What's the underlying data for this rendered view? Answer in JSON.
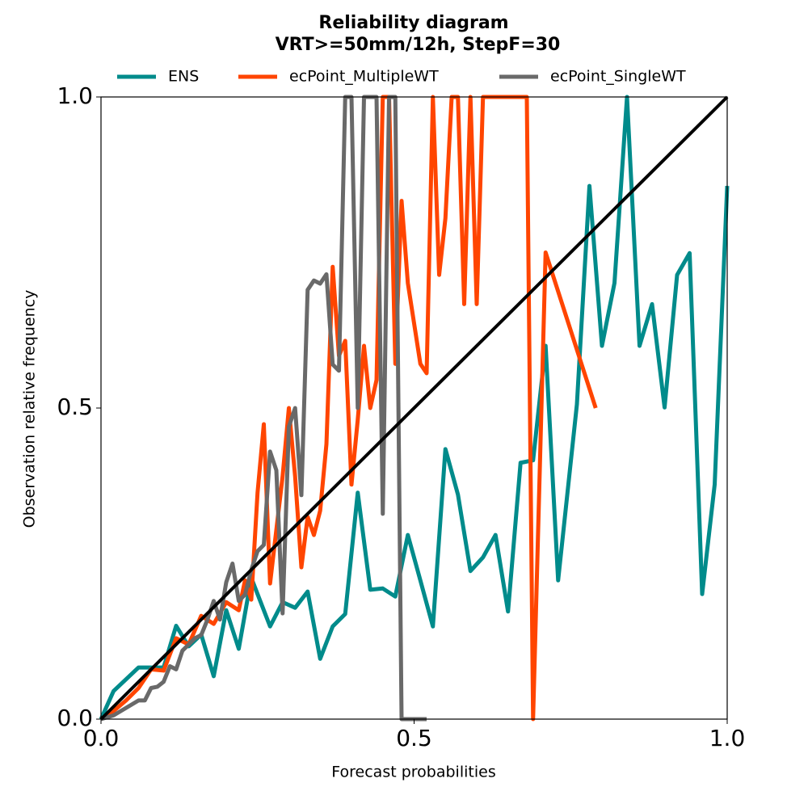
{
  "chart_data": {
    "type": "line",
    "title": "Reliability diagram",
    "subtitle": "VRT>=50mm/12h, StepF=30",
    "x_label": "Forecast probabilities",
    "y_label": "Observation relative frequency",
    "xlim": [
      0,
      1
    ],
    "ylim": [
      0,
      1
    ],
    "xticks": [
      {
        "value": 0,
        "label": "0.0"
      },
      0.5,
      {
        "value": 1,
        "label": "1.0"
      }
    ],
    "yticks": [
      {
        "value": 0,
        "label": "0.0"
      },
      0.5,
      {
        "value": 1,
        "label": "1.0"
      }
    ],
    "diagonal": true,
    "diagonal_color": "#000000",
    "legend": "top",
    "series": [
      {
        "name": "ENS",
        "color": "#008b8b",
        "x": [
          0,
          0.02,
          0.06,
          0.08,
          0.1,
          0.12,
          0.14,
          0.16,
          0.18,
          0.2,
          0.22,
          0.24,
          0.27,
          0.29,
          0.31,
          0.33,
          0.35,
          0.37,
          0.39,
          0.41,
          0.43,
          0.45,
          0.47,
          0.49,
          0.51,
          0.53,
          0.55,
          0.57,
          0.59,
          0.61,
          0.63,
          0.65,
          0.67,
          0.69,
          0.71,
          0.73,
          0.76,
          0.78,
          0.8,
          0.82,
          0.84,
          0.86,
          0.88,
          0.9,
          0.92,
          0.94,
          0.96,
          0.98,
          1.0
        ],
        "values": [
          0,
          0.045,
          0.083,
          0.083,
          0.083,
          0.15,
          0.117,
          0.136,
          0.069,
          0.175,
          0.113,
          0.227,
          0.149,
          0.188,
          0.179,
          0.205,
          0.097,
          0.149,
          0.169,
          0.364,
          0.208,
          0.21,
          0.197,
          0.296,
          0.223,
          0.149,
          0.434,
          0.361,
          0.238,
          0.26,
          0.296,
          0.173,
          0.412,
          0.416,
          0.6,
          0.223,
          0.506,
          0.857,
          0.6,
          0.701,
          1.0,
          0.6,
          0.667,
          0.501,
          0.714,
          0.749,
          0.201,
          0.377,
          0.857
        ]
      },
      {
        "name": "ecPoint_MultipleWT",
        "color": "#ff4500",
        "x": [
          0,
          0.02,
          0.04,
          0.06,
          0.08,
          0.1,
          0.12,
          0.14,
          0.16,
          0.18,
          0.2,
          0.22,
          0.23,
          0.24,
          0.25,
          0.26,
          0.27,
          0.29,
          0.3,
          0.31,
          0.32,
          0.33,
          0.34,
          0.35,
          0.36,
          0.37,
          0.38,
          0.39,
          0.4,
          0.41,
          0.42,
          0.43,
          0.44,
          0.45,
          0.46,
          0.47,
          0.48,
          0.49,
          0.51,
          0.52,
          0.53,
          0.54,
          0.55,
          0.56,
          0.57,
          0.58,
          0.59,
          0.6,
          0.61,
          0.68,
          0.69,
          0.71,
          0.79
        ],
        "values": [
          0,
          0.013,
          0.03,
          0.05,
          0.08,
          0.078,
          0.13,
          0.12,
          0.166,
          0.153,
          0.188,
          0.175,
          0.223,
          0.192,
          0.364,
          0.474,
          0.218,
          0.39,
          0.5,
          0.39,
          0.244,
          0.325,
          0.296,
          0.335,
          0.442,
          0.727,
          0.584,
          0.608,
          0.377,
          0.481,
          0.6,
          0.5,
          0.545,
          1.0,
          1.0,
          0.571,
          0.833,
          0.701,
          0.571,
          0.556,
          1.0,
          0.714,
          0.805,
          1.0,
          1.0,
          0.667,
          1.0,
          0.667,
          1.0,
          1.0,
          0,
          0.75,
          0.5
        ]
      },
      {
        "name": "ecPoint_SingleWT",
        "color": "#696969",
        "x": [
          0,
          0.02,
          0.04,
          0.06,
          0.07,
          0.08,
          0.09,
          0.1,
          0.11,
          0.12,
          0.13,
          0.14,
          0.15,
          0.16,
          0.17,
          0.18,
          0.19,
          0.2,
          0.21,
          0.22,
          0.23,
          0.24,
          0.25,
          0.26,
          0.27,
          0.28,
          0.29,
          0.3,
          0.31,
          0.32,
          0.33,
          0.34,
          0.35,
          0.36,
          0.37,
          0.38,
          0.39,
          0.4,
          0.41,
          0.42,
          0.43,
          0.44,
          0.45,
          0.46,
          0.47,
          0.48,
          0.49,
          0.5,
          0.52
        ],
        "values": [
          0,
          0.006,
          0.018,
          0.03,
          0.03,
          0.05,
          0.052,
          0.06,
          0.085,
          0.08,
          0.11,
          0.12,
          0.13,
          0.135,
          0.16,
          0.19,
          0.16,
          0.22,
          0.25,
          0.19,
          0.2,
          0.24,
          0.27,
          0.28,
          0.43,
          0.4,
          0.17,
          0.47,
          0.5,
          0.36,
          0.69,
          0.705,
          0.7,
          0.715,
          0.57,
          0.56,
          1.0,
          1.0,
          0.5,
          1.0,
          1.0,
          1.0,
          0.33,
          1.0,
          1.0,
          0,
          0,
          0,
          0
        ]
      }
    ]
  }
}
